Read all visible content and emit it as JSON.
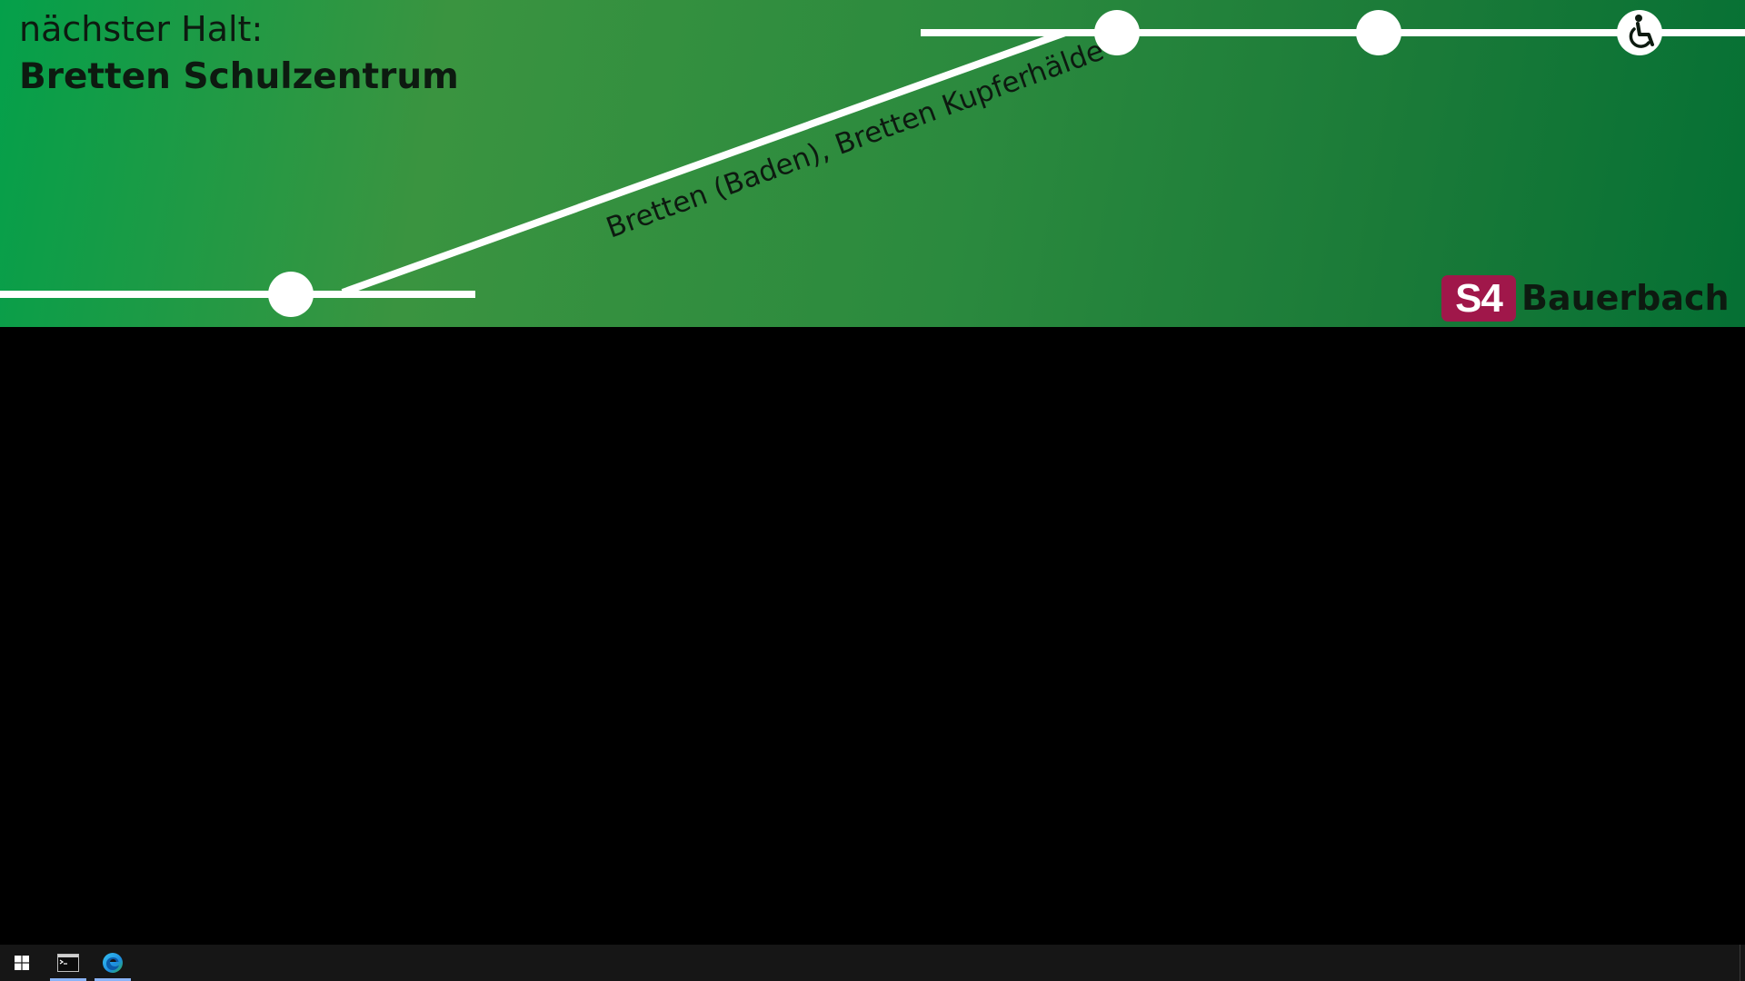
{
  "display": {
    "next_stop_label": "nächster Halt:",
    "next_stop_name": "Bretten Schulzentrum",
    "route_label": "Bretten (Baden), Bretten Kupferhälde",
    "line": "S4",
    "line_color": "#a0174a",
    "destination": "Bauerbach",
    "accessible_stop_icon": "wheelchair-icon"
  },
  "colors": {
    "banner_start": "#04a04a",
    "banner_end": "#057034",
    "route_line": "#ffffff",
    "text": "#0d1a10"
  },
  "taskbar": {
    "items": [
      {
        "name": "start-button",
        "icon": "windows-logo-icon"
      },
      {
        "name": "terminal-button",
        "icon": "terminal-icon",
        "active": true
      },
      {
        "name": "edge-button",
        "icon": "edge-browser-icon",
        "active": true
      }
    ]
  }
}
